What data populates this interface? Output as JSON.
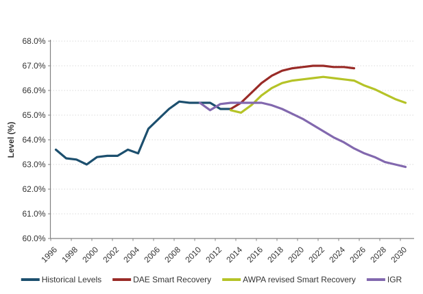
{
  "chart_data": {
    "type": "line",
    "title": "",
    "xlabel": "",
    "ylabel": "Level (%)",
    "ylim": [
      60.0,
      68.0
    ],
    "y_tick_step": 1.0,
    "y_tick_suffix": "%",
    "x_tick_years": [
      1996,
      1998,
      2000,
      2002,
      2004,
      2006,
      2008,
      2010,
      2012,
      2014,
      2016,
      2018,
      2020,
      2022,
      2024,
      2026,
      2028,
      2030
    ],
    "x_range": [
      1996,
      2030
    ],
    "grid": "horizontal-dotted",
    "legend_position": "bottom",
    "series": [
      {
        "name": "Historical Levels",
        "color": "#1c4f6e",
        "years": [
          1996,
          1997,
          1998,
          1999,
          2000,
          2001,
          2002,
          2003,
          2004,
          2005,
          2006,
          2007,
          2008,
          2009,
          2010,
          2011,
          2012,
          2013
        ],
        "values": [
          63.6,
          63.25,
          63.2,
          63.0,
          63.3,
          63.35,
          63.35,
          63.6,
          63.45,
          64.45,
          64.85,
          65.25,
          65.55,
          65.5,
          65.5,
          65.5,
          65.25,
          65.25
        ]
      },
      {
        "name": "DAE Smart Recovery",
        "color": "#992b27",
        "years": [
          2013,
          2014,
          2015,
          2016,
          2017,
          2018,
          2019,
          2020,
          2021,
          2022,
          2023,
          2024,
          2025
        ],
        "values": [
          65.25,
          65.5,
          65.9,
          66.3,
          66.6,
          66.8,
          66.9,
          66.95,
          67.0,
          67.0,
          66.95,
          66.95,
          66.9
        ]
      },
      {
        "name": "AWPA revised Smart Recovery",
        "color": "#b5c327",
        "years": [
          2013,
          2014,
          2015,
          2016,
          2017,
          2018,
          2019,
          2020,
          2021,
          2022,
          2023,
          2024,
          2025,
          2026,
          2027,
          2028,
          2029,
          2030
        ],
        "values": [
          65.2,
          65.1,
          65.4,
          65.8,
          66.1,
          66.3,
          66.4,
          66.45,
          66.5,
          66.55,
          66.5,
          66.45,
          66.4,
          66.2,
          66.05,
          65.85,
          65.65,
          65.5
        ]
      },
      {
        "name": "IGR",
        "color": "#8268ae",
        "years": [
          2010,
          2011,
          2012,
          2013,
          2014,
          2015,
          2016,
          2017,
          2018,
          2019,
          2020,
          2021,
          2022,
          2023,
          2024,
          2025,
          2026,
          2027,
          2028,
          2029,
          2030
        ],
        "values": [
          65.5,
          65.2,
          65.45,
          65.5,
          65.5,
          65.5,
          65.5,
          65.4,
          65.25,
          65.05,
          64.85,
          64.6,
          64.35,
          64.1,
          63.9,
          63.65,
          63.45,
          63.3,
          63.1,
          63.0,
          62.9
        ]
      }
    ],
    "colors": {
      "grid": "#d9d9d9",
      "axis": "#808080",
      "text": "#333333"
    }
  }
}
